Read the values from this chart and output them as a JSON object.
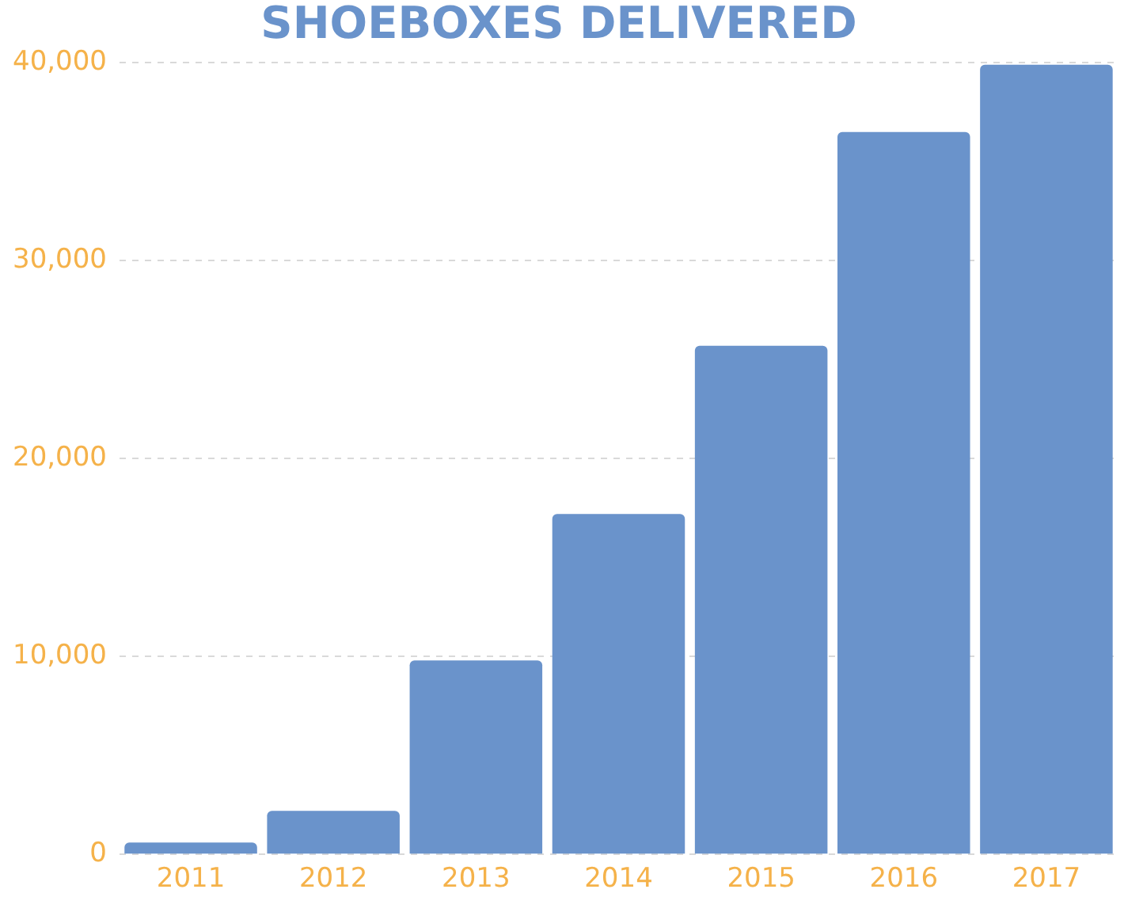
{
  "chart_data": {
    "type": "bar",
    "title": "SHOEBOXES DELIVERED",
    "categories": [
      "2011",
      "2012",
      "2013",
      "2014",
      "2015",
      "2016",
      "2017"
    ],
    "values": [
      600,
      2200,
      9800,
      17200,
      25700,
      36500,
      39900
    ],
    "color": "#6a93cb",
    "ylim": [
      0,
      40000
    ],
    "yticks": [
      0,
      {
        "value": 10000,
        "label": "10,000"
      },
      {
        "value": 20000,
        "label": "20,000"
      },
      {
        "value": 30000,
        "label": "30,000"
      },
      {
        "value": 40000,
        "label": "40,000"
      }
    ],
    "grid": "y",
    "legend": false
  }
}
